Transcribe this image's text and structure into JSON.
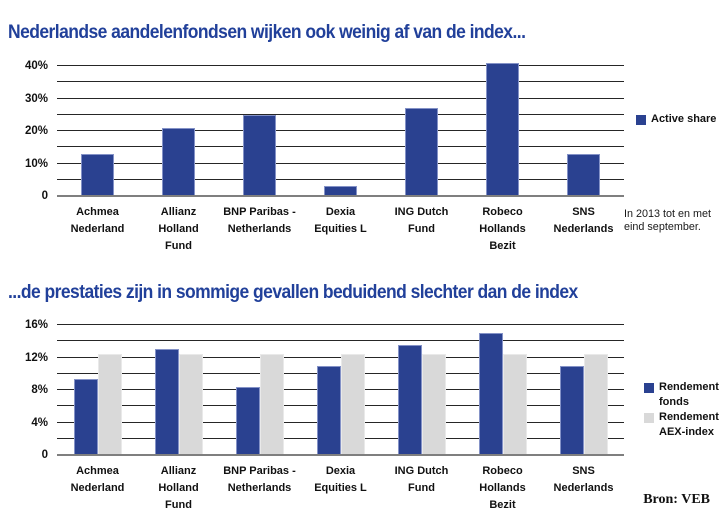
{
  "page": {
    "source_label": "Bron: VEB",
    "background": "#ffffff",
    "title_color": "#21409a"
  },
  "colors": {
    "bar_blue": "#2a4190",
    "bar_blue_edge": "#8492c7",
    "bar_gray": "#d9d9d9",
    "bar_gray_edge": "#e9e9e9",
    "gridline": "#262626",
    "baseline": "#7f7f7f",
    "text": "#111111"
  },
  "chart_data": [
    {
      "type": "bar",
      "title": "Nederlandse aandelenfondsen wijken ook weinig af van de index...",
      "categories": [
        "Achmea\nNederland",
        "Allianz\nHolland\nFund",
        "BNP Paribas -\nNetherlands",
        "Dexia\nEquities L",
        "ING Dutch\nFund",
        "Robeco\nHollands\nBezit",
        "SNS\nNederlands"
      ],
      "series": [
        {
          "name": "Active share",
          "color": "#2a4190",
          "edge": "#8492c7",
          "values": [
            13,
            21,
            25,
            3,
            27,
            41,
            13
          ]
        }
      ],
      "xlabel": "",
      "ylabel": "",
      "ylim": [
        0,
        40
      ],
      "grid_step": 5,
      "label_step": 10,
      "tick_suffix": "%",
      "zero_tick_label": "0",
      "grid": true,
      "legend_position": "right",
      "note": "In 2013 tot en met eind september."
    },
    {
      "type": "bar",
      "title": "...de prestaties zijn in sommige gevallen beduidend slechter dan de index",
      "categories": [
        "Achmea\nNederland",
        "Allianz\nHolland\nFund",
        "BNP Paribas -\nNetherlands",
        "Dexia\nEquities L",
        "ING Dutch\nFund",
        "Robeco\nHollands\nBezit",
        "SNS\nNederlands"
      ],
      "series": [
        {
          "name": "Rendement fonds",
          "color": "#2a4190",
          "edge": "#8492c7",
          "values": [
            9.3,
            13,
            8.4,
            11,
            13.5,
            15,
            11
          ]
        },
        {
          "name": "Rendement AEX-index",
          "color": "#d9d9d9",
          "edge": "#e9e9e9",
          "values": [
            12.4,
            12.4,
            12.4,
            12.4,
            12.4,
            12.4,
            12.4
          ]
        }
      ],
      "xlabel": "",
      "ylabel": "",
      "ylim": [
        0,
        16
      ],
      "grid_step": 2,
      "label_step": 4,
      "tick_suffix": "%",
      "zero_tick_label": "0",
      "grid": true,
      "legend_position": "right"
    }
  ]
}
